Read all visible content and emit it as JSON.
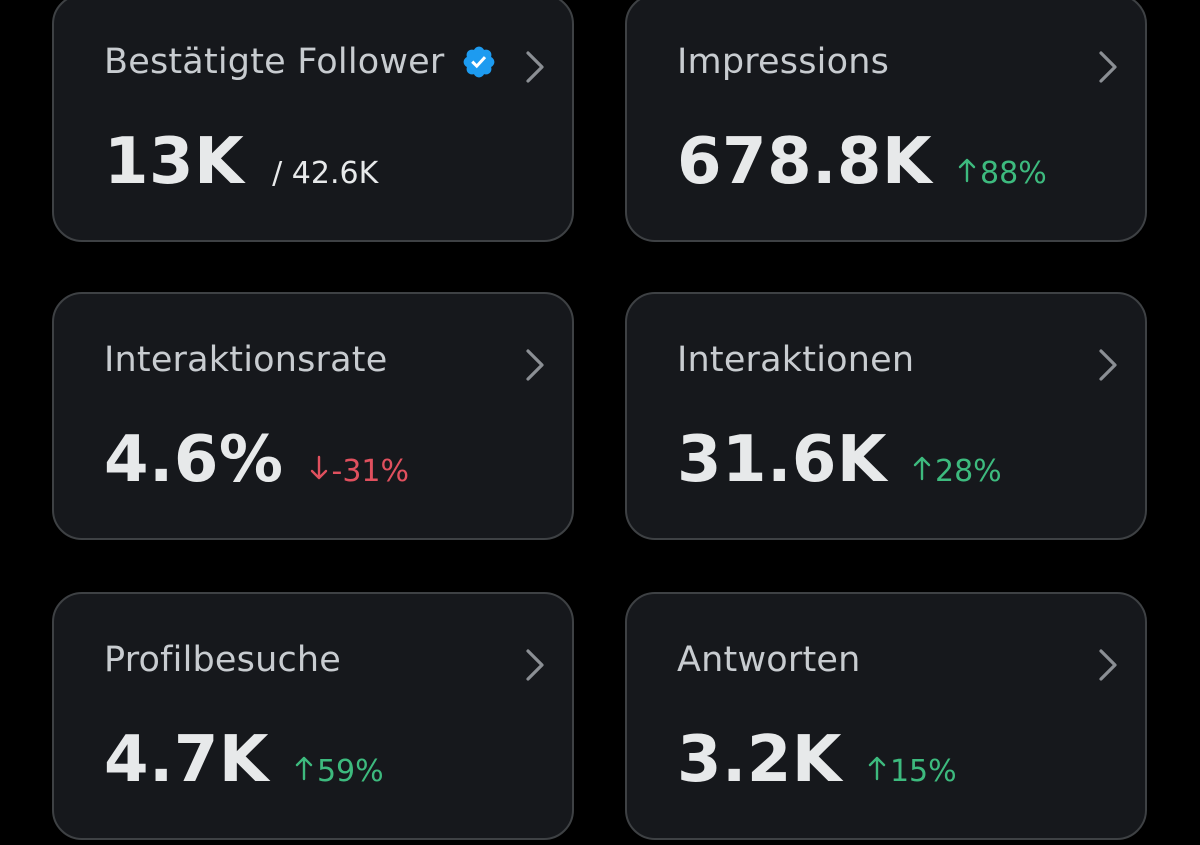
{
  "colors": {
    "background": "#000000",
    "card": "#16181c",
    "border": "#3e4144",
    "title": "#c8ccd0",
    "value": "#e7e9ea",
    "positive": "#3dba7e",
    "negative": "#e0505e",
    "verified": "#1d9bf0"
  },
  "cards": [
    {
      "title": "Bestätigte Follower",
      "value": "13K",
      "secondary": "/ 42.6K",
      "icon": "verified-badge-icon"
    },
    {
      "title": "Impressions",
      "value": "678.8K",
      "change": "88%",
      "direction": "up"
    },
    {
      "title": "Interaktionsrate",
      "value": "4.6%",
      "change": "-31%",
      "direction": "down"
    },
    {
      "title": "Interaktionen",
      "value": "31.6K",
      "change": "28%",
      "direction": "up"
    },
    {
      "title": "Profilbesuche",
      "value": "4.7K",
      "change": "59%",
      "direction": "up"
    },
    {
      "title": "Antworten",
      "value": "3.2K",
      "change": "15%",
      "direction": "up"
    }
  ]
}
